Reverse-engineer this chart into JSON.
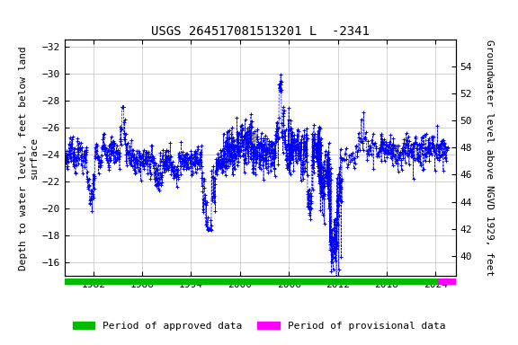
{
  "title": "USGS 264517081513201 L  -2341",
  "ylabel_left": "Depth to water level, feet below land\nsurface",
  "ylabel_right": "Groundwater level above NGVD 1929, feet",
  "xlim": [
    1978.5,
    2026.5
  ],
  "ylim_left": [
    -15.0,
    -32.5
  ],
  "ylim_right": [
    38.5,
    56.0
  ],
  "xticks": [
    1982,
    1988,
    1994,
    2000,
    2006,
    2012,
    2018,
    2024
  ],
  "yticks_left": [
    -32,
    -30,
    -28,
    -26,
    -24,
    -22,
    -20,
    -18,
    -16
  ],
  "yticks_right": [
    54,
    52,
    50,
    48,
    46,
    44,
    42,
    40
  ],
  "data_color": "#0000FF",
  "background_color": "#ffffff",
  "grid_color": "#c0c0c0",
  "approved_color": "#00bb00",
  "provisional_color": "#ff00ff",
  "approved_start": 1978.5,
  "approved_end": 2024.3,
  "provisional_start": 2024.3,
  "provisional_end": 2026.5,
  "title_fontsize": 10,
  "axis_fontsize": 8,
  "tick_fontsize": 8,
  "legend_fontsize": 8
}
